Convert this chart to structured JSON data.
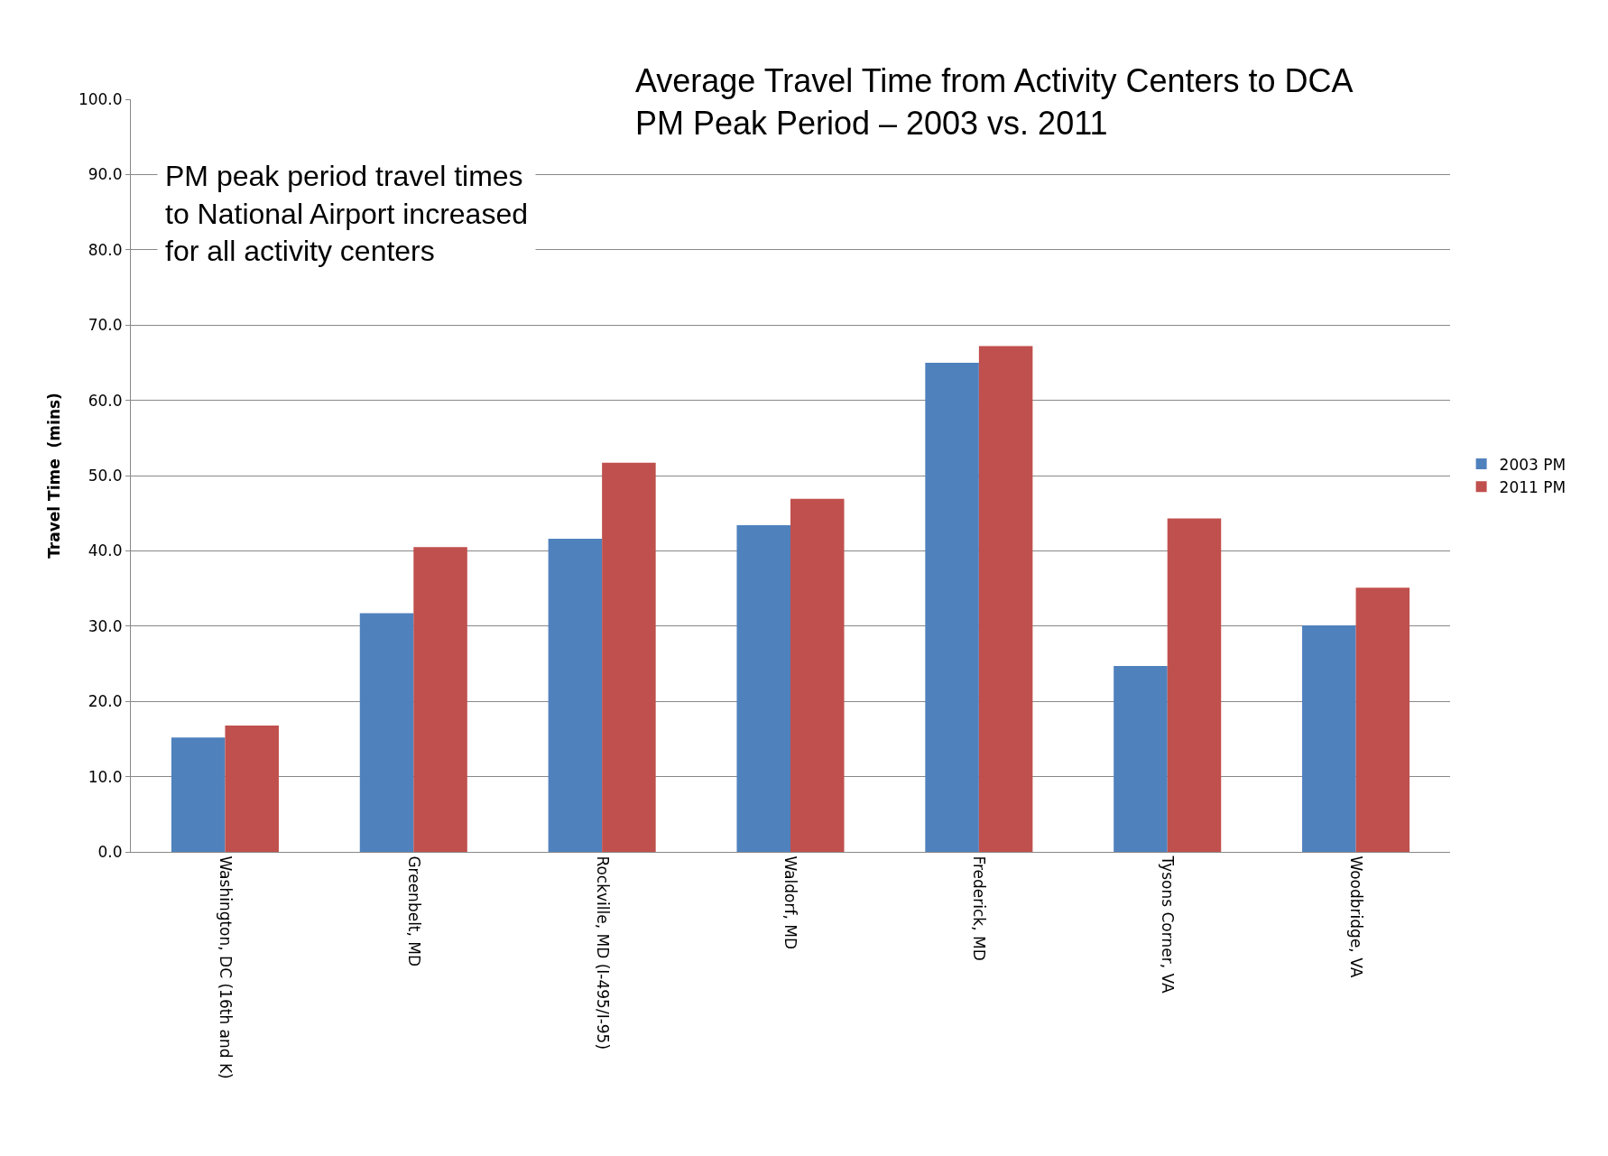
{
  "chart_data": {
    "type": "bar",
    "title": "Average Travel Time from Activity Centers to DCA\nPM Peak Period – 2003 vs. 2011",
    "ylabel": "Travel Time  (mins)",
    "annotations": [
      "PM peak period travel times\nto National Airport increased\nfor all activity centers"
    ],
    "categories": [
      "Washington, DC (16th and K)",
      "Greenbelt, MD",
      "Rockville, MD (I-495/I-95)",
      "Waldorf, MD",
      "Frederick, MD",
      "Tysons Corner, VA",
      "Woodbridge, VA"
    ],
    "series": [
      {
        "name": "2003 PM",
        "color": "#4f81bd",
        "values": [
          15.2,
          31.7,
          41.6,
          43.4,
          65.0,
          24.7,
          30.1
        ]
      },
      {
        "name": "2011 PM",
        "color": "#c0504d",
        "values": [
          16.8,
          40.5,
          51.7,
          46.9,
          67.2,
          44.3,
          35.1
        ]
      }
    ],
    "ylim": [
      0,
      100
    ],
    "yticks": [
      {
        "value": 0,
        "label": "0.0"
      },
      {
        "value": 10,
        "label": "10.0"
      },
      {
        "value": 20,
        "label": "20.0"
      },
      {
        "value": 30,
        "label": "30.0"
      },
      {
        "value": 40,
        "label": "40.0"
      },
      {
        "value": 50,
        "label": "50.0"
      },
      {
        "value": 60,
        "label": "60.0"
      },
      {
        "value": 70,
        "label": "70.0"
      },
      {
        "value": 80,
        "label": "80.0"
      },
      {
        "value": 90,
        "label": "90.0"
      },
      {
        "value": 100,
        "label": "100.0"
      }
    ],
    "grid": "y",
    "legend": "right"
  }
}
